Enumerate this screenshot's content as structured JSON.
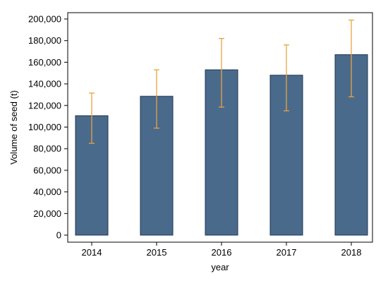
{
  "chart_data": {
    "type": "bar",
    "title": "",
    "xlabel": "year",
    "ylabel": "Volume of seed (t)",
    "categories": [
      "2014",
      "2015",
      "2016",
      "2017",
      "2018"
    ],
    "values": [
      110500,
      128500,
      153000,
      148000,
      167000
    ],
    "error_low": [
      85000,
      99000,
      118500,
      115000,
      128000
    ],
    "error_high": [
      131500,
      153000,
      182000,
      176000,
      199000
    ],
    "ylim": [
      0,
      200000
    ],
    "yticks": [
      0,
      20000,
      40000,
      60000,
      80000,
      100000,
      120000,
      140000,
      160000,
      180000,
      200000
    ],
    "ytick_labels": [
      "0",
      "20,000",
      "40,000",
      "60,000",
      "80,000",
      "100,000",
      "120,000",
      "140,000",
      "160,000",
      "180,000",
      "200,000"
    ],
    "grid": false,
    "colors": {
      "bar_fill": "#4a6a8c",
      "bar_stroke": "#1f3550",
      "error_bar": "#e8a33d",
      "axis": "#000000"
    }
  }
}
